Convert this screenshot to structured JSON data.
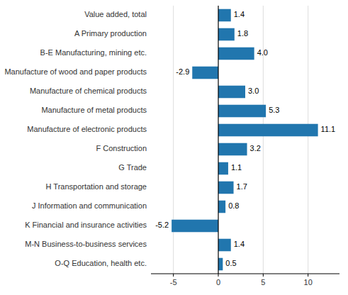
{
  "chart_data": {
    "type": "bar",
    "orientation": "horizontal",
    "categories": [
      "O-Q Education, health etc.",
      "M-N Business-to-business services",
      "K Financial and insurance activities",
      "J Information and communication",
      "H Transportation and storage",
      "G Trade",
      "F Construction",
      "Manufacture of electronic products",
      "Manufacture of metal products",
      "Manufacture of chemical products",
      "Manufacture of wood and paper products",
      "B-E Manufacturing, mining etc.",
      "A Primary production",
      "Value added, total"
    ],
    "values": [
      0.5,
      1.4,
      -5.2,
      0.8,
      1.7,
      1.1,
      3.2,
      11.1,
      5.3,
      3.0,
      -2.9,
      4.0,
      1.8,
      1.4
    ],
    "value_labels": [
      "0.5",
      "1.4",
      "-5.2",
      "0.8",
      "1.7",
      "1.1",
      "3.2",
      "11.1",
      "5.3",
      "3.0",
      "-2.9",
      "4.0",
      "1.8",
      "1.4"
    ],
    "data_labels": true,
    "color": "#2176ae",
    "xlim": [
      -7.5,
      13.5
    ],
    "xticks": [
      -5,
      0,
      5,
      10
    ],
    "grid": true
  }
}
